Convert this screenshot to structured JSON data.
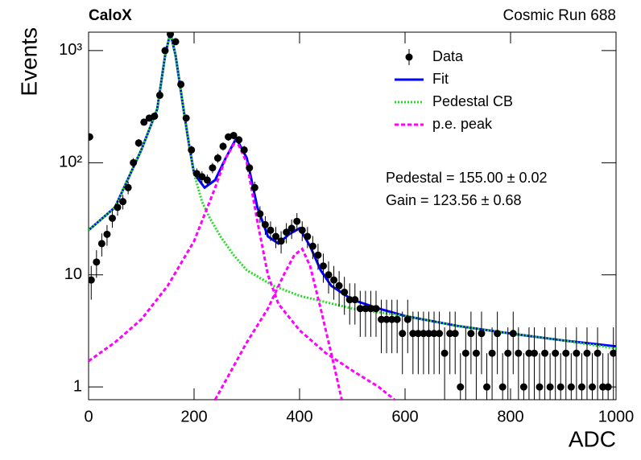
{
  "chart_data": {
    "type": "line",
    "title": "CaloX",
    "subtitle": "Cosmic Run 688",
    "x_label": "ADC",
    "y_label": "Events",
    "yscale": "log",
    "xlim": [
      0,
      1000
    ],
    "ylim": [
      0.77,
      1460
    ],
    "xticks": [
      0,
      200,
      400,
      600,
      800,
      1000
    ],
    "yticks": [
      1,
      10,
      {
        "value": 100,
        "label": "10²"
      },
      {
        "value": 1000,
        "label": "10³"
      }
    ],
    "legend": "upper right",
    "annotations": [
      "Pedestal = 155.00 ± 0.02",
      "Gain = 123.56 ± 0.68"
    ],
    "series": [
      {
        "name": "Data",
        "color": "#000000",
        "style": "markers",
        "x": [
          2,
          5,
          15,
          25,
          35,
          45,
          55,
          65,
          75,
          85,
          95,
          105,
          115,
          125,
          135,
          145,
          155,
          165,
          175,
          185,
          195,
          205,
          215,
          225,
          235,
          245,
          255,
          265,
          275,
          285,
          295,
          305,
          315,
          325,
          335,
          345,
          355,
          365,
          375,
          385,
          395,
          405,
          415,
          425,
          435,
          445,
          455,
          465,
          475,
          485,
          495,
          505,
          515,
          525,
          535,
          545,
          555,
          565,
          575,
          585,
          595,
          605,
          615,
          625,
          635,
          645,
          655,
          665,
          675,
          685,
          695,
          705,
          715,
          725,
          735,
          745,
          755,
          765,
          775,
          785,
          795,
          805,
          815,
          825,
          835,
          845,
          855,
          865,
          875,
          885,
          895,
          905,
          915,
          925,
          935,
          945,
          955,
          965,
          975,
          985,
          995
        ],
        "values": [
          170,
          9,
          13,
          19,
          23,
          32,
          40,
          45,
          60,
          100,
          150,
          230,
          250,
          260,
          400,
          1000,
          1400,
          1200,
          500,
          250,
          130,
          80,
          75,
          70,
          90,
          110,
          140,
          170,
          175,
          160,
          130,
          90,
          60,
          35,
          28,
          25,
          22,
          20,
          24,
          26,
          30,
          25,
          22,
          18,
          15,
          12,
          10,
          9,
          8,
          7,
          6,
          6,
          5,
          5,
          5,
          5,
          4,
          4,
          4,
          4,
          3,
          4,
          3,
          3,
          3,
          3,
          3,
          3,
          2,
          3,
          3,
          1,
          2,
          3,
          2,
          3,
          1,
          2,
          3,
          1,
          2,
          3,
          2,
          1,
          2,
          2,
          1,
          2,
          1,
          2,
          1,
          2,
          1,
          2,
          1,
          2,
          1,
          2,
          1,
          1,
          2
        ],
        "errors": [
          13,
          3,
          3.6,
          4.4,
          4.8,
          5.7,
          6.3,
          6.7,
          7.7,
          10,
          12.2,
          15.2,
          15.8,
          16.1,
          20,
          31.6,
          37.4,
          34.6,
          22.4,
          15.8,
          11.4,
          8.9,
          8.7,
          8.4,
          9.5,
          10.5,
          11.8,
          13,
          13.2,
          12.6,
          11.4,
          9.5,
          7.7,
          5.9,
          5.3,
          5,
          4.7,
          4.5,
          4.9,
          5.1,
          5.5,
          5,
          4.7,
          4.2,
          3.9,
          3.5,
          3.2,
          3,
          2.8,
          2.6,
          2.4,
          2.4,
          2.2,
          2.2,
          2.2,
          2.2,
          2,
          2,
          2,
          2,
          1.7,
          2,
          1.7,
          1.7,
          1.7,
          1.7,
          1.7,
          1.7,
          1.4,
          1.7,
          1.7,
          1,
          1.4,
          1.7,
          1.4,
          1.7,
          1,
          1.4,
          1.7,
          1,
          1.4,
          1.7,
          1.4,
          1,
          1.4,
          1.4,
          1,
          1.4,
          1,
          1.4,
          1,
          1.4,
          1,
          1.4,
          1,
          1.4,
          1,
          1.4,
          1,
          1,
          1.4
        ]
      },
      {
        "name": "Fit",
        "color": "#0000ff",
        "style": "solid",
        "x": [
          0,
          50,
          100,
          130,
          145,
          155,
          165,
          180,
          190,
          200,
          220,
          240,
          260,
          280,
          300,
          320,
          340,
          360,
          380,
          400,
          420,
          440,
          460,
          500,
          550,
          600,
          700,
          800,
          900,
          1000
        ],
        "values": [
          25,
          40,
          130,
          300,
          900,
          1450,
          900,
          300,
          150,
          80,
          60,
          70,
          110,
          165,
          110,
          40,
          22,
          19,
          23,
          26,
          18,
          11,
          8,
          6,
          5,
          4.3,
          3.5,
          3,
          2.6,
          2.3
        ]
      },
      {
        "name": "Pedestal CB",
        "color": "#22dd22",
        "style": "dotted",
        "x": [
          0,
          50,
          100,
          130,
          145,
          155,
          165,
          180,
          190,
          200,
          215,
          230,
          250,
          275,
          300,
          350,
          400,
          500,
          600,
          700,
          800,
          900,
          1000
        ],
        "values": [
          25,
          40,
          130,
          300,
          900,
          1450,
          900,
          300,
          150,
          80,
          45,
          32,
          22,
          15,
          11,
          8,
          6.5,
          5,
          4.3,
          3.5,
          3,
          2.6,
          2.2
        ]
      },
      {
        "name": "p.e. peak",
        "color": "#ff00ff",
        "style": "dashed",
        "x": [
          0,
          50,
          100,
          150,
          200,
          240,
          260,
          280,
          300,
          320,
          340,
          360,
          400,
          450,
          500,
          550,
          580,
          null,
          240,
          300,
          340,
          370,
          390,
          405,
          420,
          440,
          460,
          480
        ],
        "values": [
          1.7,
          2.5,
          4,
          8,
          20,
          60,
          110,
          160,
          100,
          30,
          10,
          5.5,
          3.2,
          2,
          1.4,
          1,
          0.77,
          null,
          0.77,
          2.5,
          5,
          10,
          15,
          17,
          12,
          5,
          2,
          0.77
        ]
      }
    ]
  }
}
